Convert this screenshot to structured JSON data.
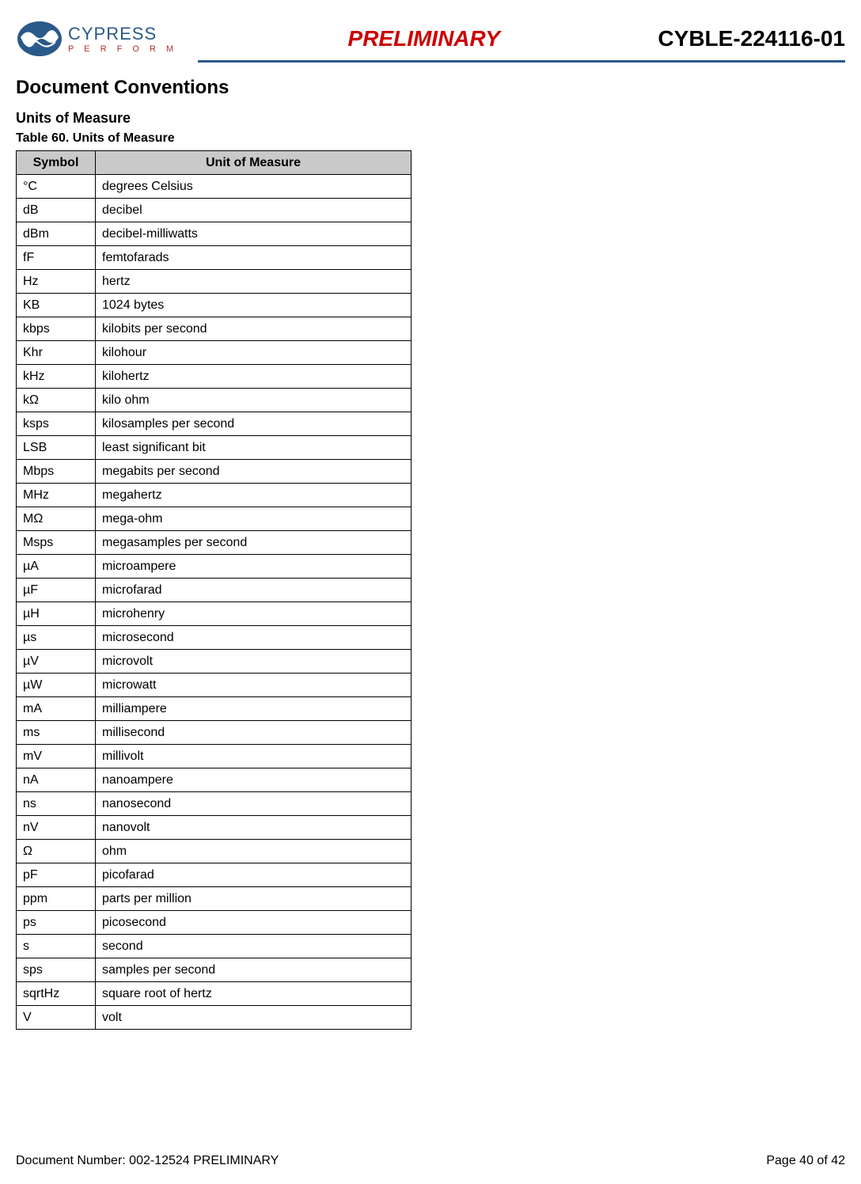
{
  "header": {
    "logo_word": "CYPRESS",
    "logo_sub": "P E R F O R M",
    "preliminary": "PRELIMINARY",
    "part_number": "CYBLE-224116-01"
  },
  "section_title": "Document Conventions",
  "subsection_title": "Units of Measure",
  "table_caption": "Table 60.  Units of Measure",
  "table": {
    "columns": [
      "Symbol",
      "Unit of Measure"
    ],
    "rows": [
      [
        "°C",
        "degrees Celsius"
      ],
      [
        "dB",
        "decibel"
      ],
      [
        "dBm",
        "decibel-milliwatts"
      ],
      [
        "fF",
        "femtofarads"
      ],
      [
        "Hz",
        "hertz"
      ],
      [
        "KB",
        "1024 bytes"
      ],
      [
        "kbps",
        "kilobits per second"
      ],
      [
        "Khr",
        "kilohour"
      ],
      [
        "kHz",
        "kilohertz"
      ],
      [
        "kΩ",
        "kilo ohm"
      ],
      [
        "ksps",
        "kilosamples per second"
      ],
      [
        "LSB",
        "least significant bit"
      ],
      [
        "Mbps",
        "megabits per second"
      ],
      [
        "MHz",
        "megahertz"
      ],
      [
        "MΩ",
        "mega-ohm"
      ],
      [
        "Msps",
        "megasamples per second"
      ],
      [
        "µA",
        "microampere"
      ],
      [
        "µF",
        "microfarad"
      ],
      [
        "µH",
        "microhenry"
      ],
      [
        "µs",
        "microsecond"
      ],
      [
        "µV",
        "microvolt"
      ],
      [
        "µW",
        "microwatt"
      ],
      [
        "mA",
        "milliampere"
      ],
      [
        "ms",
        "millisecond"
      ],
      [
        "mV",
        "millivolt"
      ],
      [
        "nA",
        "nanoampere"
      ],
      [
        "ns",
        "nanosecond"
      ],
      [
        "nV",
        "nanovolt"
      ],
      [
        "Ω",
        "ohm"
      ],
      [
        "pF",
        "picofarad"
      ],
      [
        "ppm",
        "parts per million"
      ],
      [
        "ps",
        "picosecond"
      ],
      [
        "s",
        "second"
      ],
      [
        "sps",
        "samples per second"
      ],
      [
        "sqrtHz",
        "square root of hertz"
      ],
      [
        "V",
        "volt"
      ]
    ]
  },
  "footer": {
    "doc_number": "Document Number: 002-12524 PRELIMINARY",
    "page": "Page 40 of 42"
  },
  "colors": {
    "brand_blue": "#2a5a8a",
    "brand_red": "#b03030",
    "prelim_red": "#cc0000",
    "header_grey": "#c9c9c9",
    "border": "#000000",
    "text": "#000000"
  }
}
